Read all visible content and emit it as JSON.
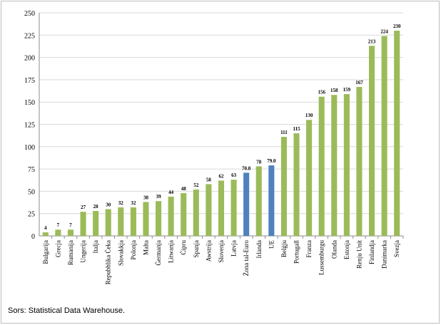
{
  "chart_data": {
    "type": "bar",
    "title": "",
    "xlabel": "",
    "ylabel": "",
    "ylim": [
      0,
      250
    ],
    "ytick_step": 25,
    "grid": "horizontal",
    "legend": "none",
    "colors": {
      "default": "#9bbb59",
      "highlight": "#4f81bd",
      "grid": "#d9d9d9"
    },
    "categories": [
      "Bulgarija",
      "Grecja",
      "Rumanija",
      "Ungerija",
      "Italja",
      "Repubblika Ċeka",
      "Slovakkja",
      "Polonja",
      "Malta",
      "Ġermanja",
      "Litwanja",
      "Ċipru",
      "Spanja",
      "Awstrija",
      "Slovenja",
      "Latvja",
      "Żona tal-Euro",
      "Irlanda",
      "UE",
      "Belġju",
      "Portugall",
      "Franza",
      "Lussemburgu",
      "Olanda",
      "Estonja",
      "Renju Unit",
      "Finlandja",
      "Danimarka",
      "Svezja"
    ],
    "values": [
      4,
      7,
      7,
      27,
      28,
      30,
      32,
      32,
      38,
      39,
      44,
      48,
      52,
      58,
      62,
      63,
      70.8,
      78,
      79.0,
      111,
      115,
      130,
      156,
      158,
      159,
      167,
      213,
      224,
      230
    ],
    "value_labels": [
      "4",
      "7",
      "7",
      "27",
      "28",
      "30",
      "32",
      "32",
      "38",
      "39",
      "44",
      "48",
      "52",
      "58",
      "62",
      "63",
      "70.8",
      "78",
      "79.0",
      "111",
      "115",
      "130",
      "156",
      "158",
      "159",
      "167",
      "213",
      "224",
      "230"
    ],
    "highlighted": [
      "Żona tal-Euro",
      "UE"
    ]
  },
  "source": "Sors: Statistical Data Warehouse."
}
